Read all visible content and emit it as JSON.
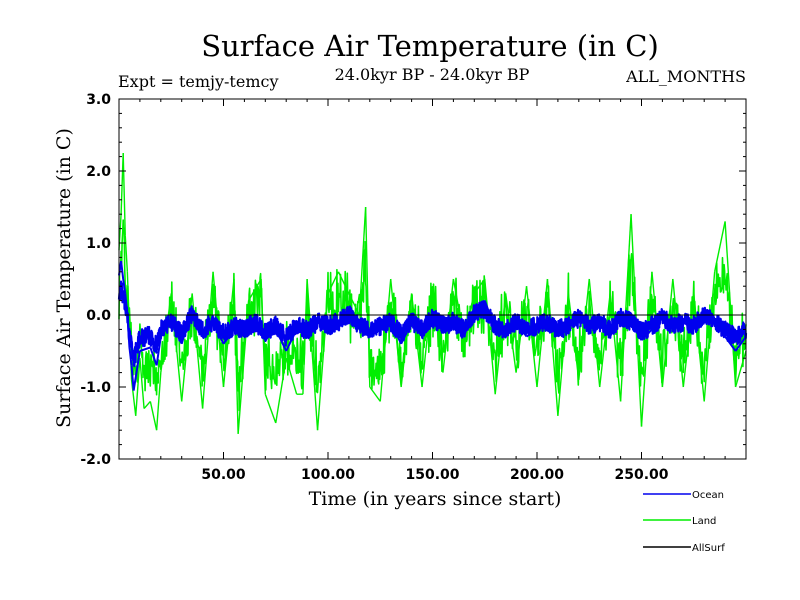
{
  "chart_data": {
    "type": "line",
    "title": "Surface Air Temperature (in C)",
    "subtitle_left": "Expt = temjy-temcy",
    "subtitle_center": "24.0kyr BP - 24.0kyr BP",
    "subtitle_right": "ALL_MONTHS",
    "xlabel": "Time (in years since start)",
    "ylabel": "Surface Air Temperature (in C)",
    "xlim": [
      0,
      300
    ],
    "ylim": [
      -2.0,
      3.0
    ],
    "xticks": [
      50,
      100,
      150,
      200,
      250
    ],
    "xtick_labels": [
      "50.00",
      "100.00",
      "150.00",
      "200.00",
      "250.00"
    ],
    "yticks": [
      -2.0,
      -1.0,
      0.0,
      1.0,
      2.0,
      3.0
    ],
    "ytick_labels": [
      "-2.0",
      "-1.0",
      "0.0",
      "1.0",
      "2.0",
      "3.0"
    ],
    "zero_line": 0.0,
    "series": [
      {
        "name": "Land",
        "color": "#00ee00",
        "keypoints": [
          [
            0,
            0.9
          ],
          [
            1,
            1.4
          ],
          [
            2,
            2.25
          ],
          [
            3,
            1.1
          ],
          [
            4,
            0.6
          ],
          [
            5,
            -0.2
          ],
          [
            6,
            -0.9
          ],
          [
            8,
            -1.4
          ],
          [
            10,
            -0.6
          ],
          [
            12,
            -1.3
          ],
          [
            15,
            -1.2
          ],
          [
            18,
            -1.6
          ],
          [
            20,
            -0.8
          ],
          [
            25,
            0.3
          ],
          [
            30,
            -1.2
          ],
          [
            35,
            0.3
          ],
          [
            40,
            -1.3
          ],
          [
            45,
            0.6
          ],
          [
            50,
            -1.0
          ],
          [
            55,
            0.5
          ],
          [
            57,
            -1.65
          ],
          [
            62,
            0.2
          ],
          [
            68,
            0.5
          ],
          [
            70,
            -1.1
          ],
          [
            75,
            -1.5
          ],
          [
            80,
            -0.6
          ],
          [
            85,
            -1.1
          ],
          [
            88,
            -1.1
          ],
          [
            90,
            0.5
          ],
          [
            95,
            -1.6
          ],
          [
            100,
            0.3
          ],
          [
            105,
            0.6
          ],
          [
            110,
            0.3
          ],
          [
            115,
            0.0
          ],
          [
            118,
            1.5
          ],
          [
            120,
            -1.0
          ],
          [
            125,
            -1.2
          ],
          [
            130,
            0.5
          ],
          [
            135,
            -1.0
          ],
          [
            140,
            0.3
          ],
          [
            145,
            -1.0
          ],
          [
            150,
            0.4
          ],
          [
            155,
            -0.8
          ],
          [
            160,
            0.5
          ],
          [
            165,
            -0.3
          ],
          [
            170,
            0.3
          ],
          [
            175,
            0.5
          ],
          [
            180,
            -1.1
          ],
          [
            185,
            0.3
          ],
          [
            190,
            -0.8
          ],
          [
            195,
            0.4
          ],
          [
            200,
            -1.0
          ],
          [
            205,
            0.5
          ],
          [
            210,
            -1.4
          ],
          [
            215,
            0.3
          ],
          [
            220,
            -0.9
          ],
          [
            225,
            0.5
          ],
          [
            230,
            -1.0
          ],
          [
            235,
            0.3
          ],
          [
            240,
            -1.2
          ],
          [
            245,
            1.4
          ],
          [
            250,
            -1.55
          ],
          [
            255,
            0.6
          ],
          [
            260,
            -1.0
          ],
          [
            265,
            0.5
          ],
          [
            270,
            -1.0
          ],
          [
            275,
            0.3
          ],
          [
            280,
            -1.2
          ],
          [
            285,
            0.6
          ],
          [
            290,
            1.3
          ],
          [
            295,
            -1.0
          ],
          [
            300,
            -0.5
          ]
        ]
      },
      {
        "name": "Ocean",
        "color": "#0000ee",
        "keypoints": [
          [
            0,
            0.55
          ],
          [
            1,
            0.75
          ],
          [
            2,
            0.5
          ],
          [
            3,
            0.3
          ],
          [
            4,
            0.0
          ],
          [
            5,
            -0.45
          ],
          [
            6,
            -0.7
          ],
          [
            7,
            -1.05
          ],
          [
            10,
            -0.5
          ],
          [
            15,
            -0.45
          ],
          [
            18,
            -0.7
          ],
          [
            20,
            -0.3
          ],
          [
            25,
            -0.1
          ],
          [
            30,
            -0.4
          ],
          [
            35,
            0.1
          ],
          [
            40,
            -0.3
          ],
          [
            45,
            -0.1
          ],
          [
            50,
            -0.4
          ],
          [
            55,
            -0.2
          ],
          [
            60,
            -0.3
          ],
          [
            65,
            -0.1
          ],
          [
            70,
            -0.35
          ],
          [
            75,
            -0.2
          ],
          [
            80,
            -0.5
          ],
          [
            85,
            -0.2
          ],
          [
            90,
            -0.3
          ],
          [
            95,
            -0.1
          ],
          [
            100,
            -0.2
          ],
          [
            105,
            -0.1
          ],
          [
            110,
            0.1
          ],
          [
            115,
            -0.2
          ],
          [
            120,
            -0.3
          ],
          [
            125,
            -0.2
          ],
          [
            130,
            -0.1
          ],
          [
            135,
            -0.4
          ],
          [
            140,
            -0.1
          ],
          [
            145,
            -0.3
          ],
          [
            150,
            0.0
          ],
          [
            155,
            -0.2
          ],
          [
            160,
            -0.1
          ],
          [
            165,
            -0.3
          ],
          [
            170,
            0.1
          ],
          [
            175,
            0.2
          ],
          [
            180,
            -0.2
          ],
          [
            185,
            -0.3
          ],
          [
            190,
            -0.1
          ],
          [
            195,
            -0.3
          ],
          [
            200,
            -0.2
          ],
          [
            205,
            -0.1
          ],
          [
            210,
            -0.3
          ],
          [
            215,
            -0.2
          ],
          [
            220,
            0.0
          ],
          [
            225,
            -0.2
          ],
          [
            230,
            -0.1
          ],
          [
            235,
            -0.3
          ],
          [
            240,
            0.0
          ],
          [
            245,
            -0.1
          ],
          [
            250,
            -0.35
          ],
          [
            255,
            -0.2
          ],
          [
            260,
            0.0
          ],
          [
            265,
            -0.2
          ],
          [
            270,
            -0.1
          ],
          [
            275,
            -0.2
          ],
          [
            280,
            0.1
          ],
          [
            285,
            -0.1
          ],
          [
            290,
            -0.3
          ],
          [
            295,
            -0.5
          ],
          [
            300,
            -0.3
          ]
        ]
      },
      {
        "name": "AllSurf",
        "color": "#000000",
        "keypoints": []
      }
    ],
    "legend_position": "bottom-right"
  }
}
